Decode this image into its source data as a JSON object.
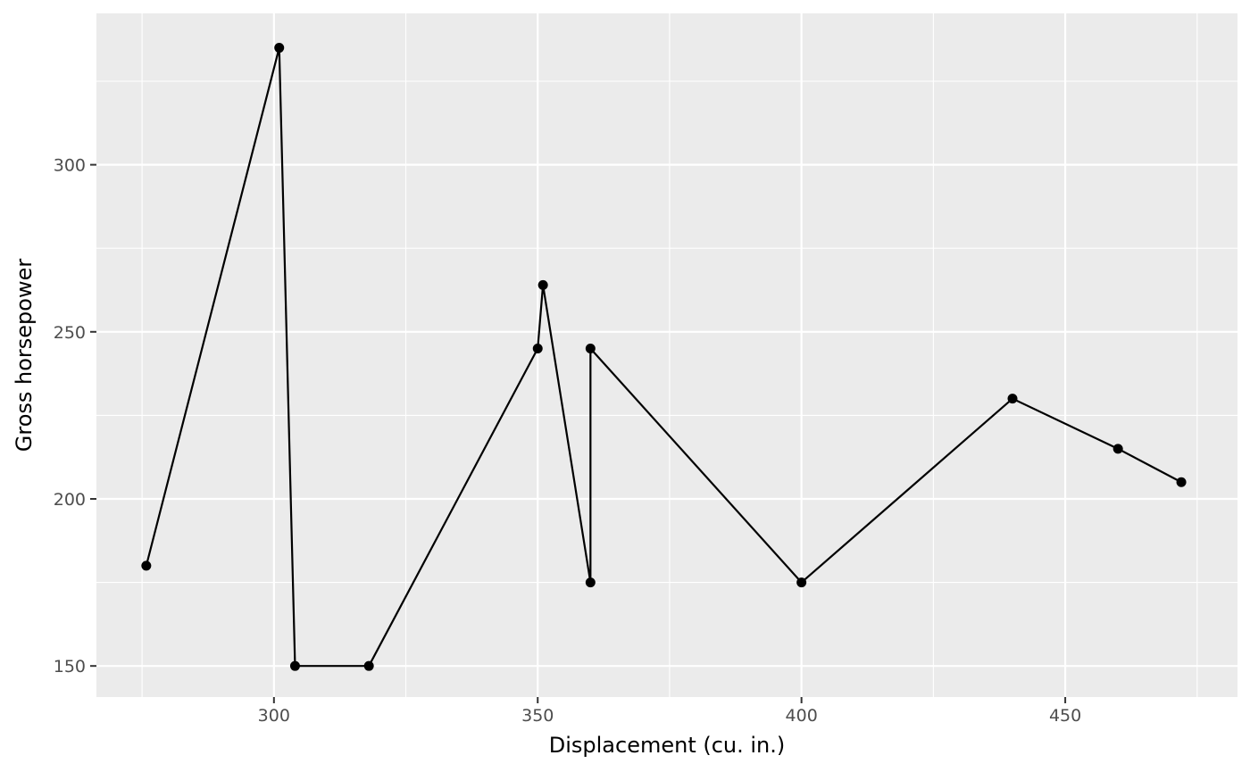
{
  "chart_data": {
    "type": "line",
    "xlabel": "Displacement (cu. in.)",
    "ylabel": "Gross horsepower",
    "xlim": [
      266.35,
      482.65
    ],
    "ylim": [
      140.7,
      345.3
    ],
    "x_major_ticks": [
      300,
      350,
      400,
      450
    ],
    "x_minor_ticks": [
      275,
      325,
      375,
      425,
      475
    ],
    "y_major_ticks": [
      150,
      200,
      250,
      300
    ],
    "y_minor_ticks": [
      175,
      225,
      275,
      325
    ],
    "grid": true,
    "legend": "none",
    "colors": {
      "panel_background": "#ebebeb",
      "grid": "#ffffff",
      "line": "#000000",
      "point": "#000000",
      "tick_mark": "#333333"
    },
    "series": [
      {
        "x": [
          275.8,
          301,
          304,
          318,
          350,
          351,
          360,
          360,
          400,
          440,
          460,
          472
        ],
        "y": [
          180,
          335,
          150,
          150,
          245,
          264,
          175,
          245,
          175,
          230,
          215,
          205
        ]
      }
    ]
  }
}
